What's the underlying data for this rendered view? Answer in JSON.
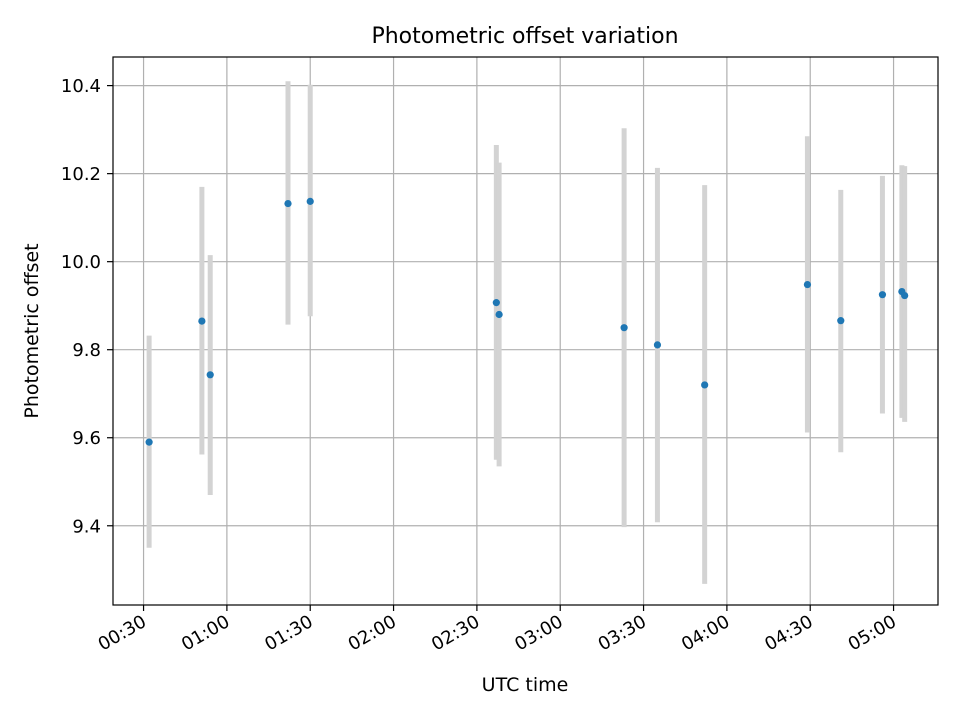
{
  "chart_data": {
    "type": "scatter",
    "title": "Photometric offset variation",
    "xlabel": "UTC time",
    "ylabel": "Photometric offset",
    "grid": true,
    "xlim": [
      "00:19",
      "05:16"
    ],
    "ylim": [
      9.22,
      10.465
    ],
    "x_ticks": [
      "00:30",
      "01:00",
      "01:30",
      "02:00",
      "02:30",
      "03:00",
      "03:30",
      "04:00",
      "04:30",
      "05:00"
    ],
    "y_ticks": [
      9.4,
      9.6,
      9.8,
      10.0,
      10.2,
      10.4
    ],
    "y_tick_labels": [
      "9.4",
      "9.6",
      "9.8",
      "10.0",
      "10.2",
      "10.4"
    ],
    "colors": {
      "point": "#1f77b4",
      "errorbar": "#d3d3d3",
      "grid": "#b0b0b0"
    },
    "series": [
      {
        "points": [
          {
            "x": "00:32",
            "y": 9.59,
            "low": 9.35,
            "high": 9.832
          },
          {
            "x": "00:51",
            "y": 9.865,
            "low": 9.562,
            "high": 10.17
          },
          {
            "x": "00:54",
            "y": 9.743,
            "low": 9.47,
            "high": 10.015
          },
          {
            "x": "01:22",
            "y": 10.132,
            "low": 9.857,
            "high": 10.41
          },
          {
            "x": "01:30",
            "y": 10.137,
            "low": 9.876,
            "high": 10.402
          },
          {
            "x": "02:37",
            "y": 9.907,
            "low": 9.55,
            "high": 10.265
          },
          {
            "x": "02:38",
            "y": 9.88,
            "low": 9.535,
            "high": 10.225
          },
          {
            "x": "03:23",
            "y": 9.85,
            "low": 9.397,
            "high": 10.303
          },
          {
            "x": "03:35",
            "y": 9.811,
            "low": 9.408,
            "high": 10.213
          },
          {
            "x": "03:52",
            "y": 9.72,
            "low": 9.268,
            "high": 10.174
          },
          {
            "x": "04:29",
            "y": 9.948,
            "low": 9.612,
            "high": 10.285
          },
          {
            "x": "04:41",
            "y": 9.866,
            "low": 9.567,
            "high": 10.163
          },
          {
            "x": "04:56",
            "y": 9.925,
            "low": 9.655,
            "high": 10.195
          },
          {
            "x": "05:03",
            "y": 9.932,
            "low": 9.645,
            "high": 10.219
          },
          {
            "x": "05:04",
            "y": 9.923,
            "low": 9.636,
            "high": 10.217
          }
        ]
      }
    ]
  }
}
